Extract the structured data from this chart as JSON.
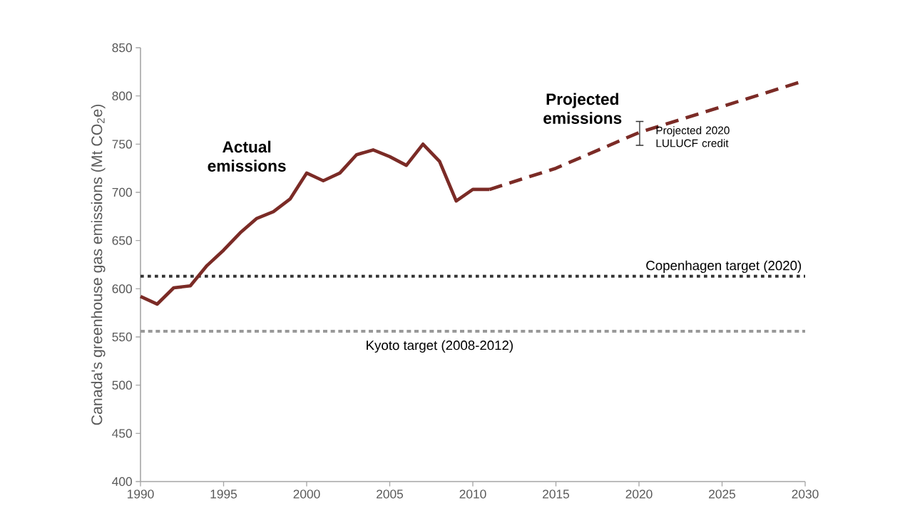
{
  "chart_data": {
    "type": "line",
    "ylabel": "Canada's greenhouse gas emissions (Mt CO$_{2}$e)",
    "series": [
      {
        "name": "Actual emissions",
        "color": "#7b2b26",
        "line_style": "solid",
        "x": [
          1990,
          1991,
          1992,
          1993,
          1994,
          1995,
          1996,
          1997,
          1998,
          1999,
          2000,
          2001,
          2002,
          2003,
          2004,
          2005,
          2006,
          2007,
          2008,
          2009,
          2010,
          2011
        ],
        "values": [
          592,
          584,
          601,
          603,
          624,
          640,
          658,
          673,
          680,
          693,
          720,
          712,
          720,
          739,
          744,
          737,
          728,
          750,
          732,
          691,
          703,
          703
        ]
      },
      {
        "name": "Projected emissions",
        "color": "#7b2b26",
        "line_style": "dashed",
        "x": [
          2011,
          2015,
          2020,
          2030
        ],
        "values": [
          703,
          725,
          762,
          816
        ]
      }
    ],
    "xlim": [
      1990,
      2030
    ],
    "xticks": [
      1990,
      1995,
      2000,
      2005,
      2010,
      2015,
      2020,
      2025,
      2030
    ],
    "ylim": [
      400,
      850
    ],
    "yticks": [
      400,
      450,
      500,
      550,
      600,
      650,
      700,
      750,
      800,
      850
    ],
    "ref_lines": [
      {
        "axis": "y",
        "value": 613,
        "label": "Copenhagen target (2020)",
        "color": "#333333",
        "line_style": "dotted"
      },
      {
        "axis": "y",
        "value": 556,
        "label": "Kyoto target (2008-2012)",
        "color": "#999999",
        "line_style": "dashed"
      }
    ],
    "annotations": [
      "Projected 2020 LULUCF credit"
    ],
    "grid": false,
    "legend": false,
    "marker": "none"
  }
}
